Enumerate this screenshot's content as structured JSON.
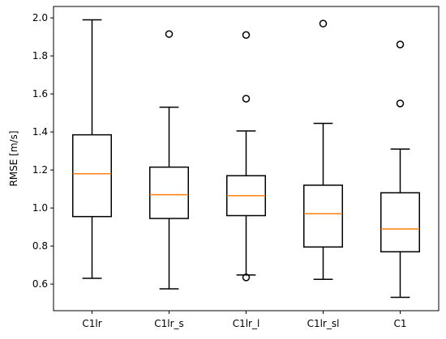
{
  "chart_data": {
    "type": "boxplot",
    "title": "",
    "xlabel": "",
    "ylabel": "RMSE [m/s]",
    "ylim": [
      0.46,
      2.06
    ],
    "yticks": [
      0.6,
      0.8,
      1.0,
      1.2,
      1.4,
      1.6,
      1.8,
      2.0
    ],
    "ytick_labels": [
      "0.6",
      "0.8",
      "1.0",
      "1.2",
      "1.4",
      "1.6",
      "1.8",
      "2.0"
    ],
    "categories": [
      "C1lr",
      "C1lr_s",
      "C1lr_l",
      "C1lr_sl",
      "C1"
    ],
    "boxes": [
      {
        "label": "C1lr",
        "whisker_low": 0.63,
        "q1": 0.955,
        "median": 1.18,
        "q3": 1.385,
        "whisker_high": 1.99,
        "fliers": []
      },
      {
        "label": "C1lr_s",
        "whisker_low": 0.575,
        "q1": 0.945,
        "median": 1.07,
        "q3": 1.215,
        "whisker_high": 1.53,
        "fliers": [
          1.915
        ]
      },
      {
        "label": "C1lr_l",
        "whisker_low": 0.648,
        "q1": 0.96,
        "median": 1.065,
        "q3": 1.17,
        "whisker_high": 1.405,
        "fliers": [
          0.635,
          1.575,
          1.91
        ]
      },
      {
        "label": "C1lr_sl",
        "whisker_low": 0.625,
        "q1": 0.795,
        "median": 0.97,
        "q3": 1.12,
        "whisker_high": 1.445,
        "fliers": [
          1.97
        ]
      },
      {
        "label": "C1",
        "whisker_low": 0.53,
        "q1": 0.77,
        "median": 0.89,
        "q3": 1.08,
        "whisker_high": 1.31,
        "fliers": [
          1.55,
          1.86
        ]
      }
    ],
    "colors": {
      "box": "#000000",
      "median": "#ff7f0e",
      "flier": "#000000"
    },
    "grid": false,
    "legend": "none"
  }
}
